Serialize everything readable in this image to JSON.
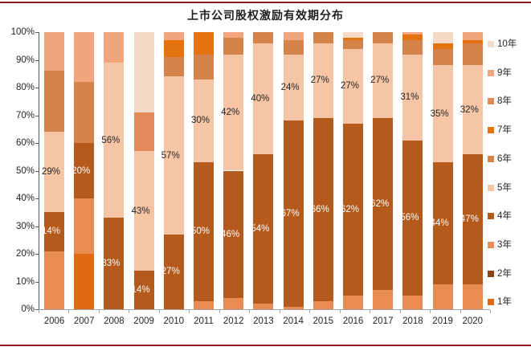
{
  "rules": {
    "color": "#8B1E1E"
  },
  "chart_data": {
    "type": "bar",
    "stacked": true,
    "orientation": "vertical",
    "title": "上市公司股权激励有效期分布",
    "categories": [
      "2006",
      "2007",
      "2008",
      "2009",
      "2010",
      "2011",
      "2012",
      "2013",
      "2014",
      "2015",
      "2016",
      "2017",
      "2018",
      "2019",
      "2020"
    ],
    "ylim": [
      0,
      100
    ],
    "yticks": [
      0,
      10,
      20,
      30,
      40,
      50,
      60,
      70,
      80,
      90,
      100
    ],
    "ytick_labels": [
      "0%",
      "10%",
      "20%",
      "30%",
      "40%",
      "50%",
      "60%",
      "70%",
      "80%",
      "90%",
      "100%"
    ],
    "grid": false,
    "legend_position": "right",
    "legend_order": "top-is-last-series",
    "labeled_series": [
      "4年",
      "5年"
    ],
    "series": [
      {
        "name": "1年",
        "color": "#E06A13",
        "label_color": "#FFFFFF",
        "values": [
          0,
          20,
          0,
          0,
          0,
          0,
          0,
          0,
          0,
          0,
          0,
          0,
          0,
          0,
          0
        ]
      },
      {
        "name": "2年",
        "color": "#8C4412",
        "label_color": "#FFFFFF",
        "values": [
          0,
          0,
          0,
          0,
          0,
          0,
          0,
          0,
          0,
          0,
          0,
          0,
          0,
          0,
          0
        ]
      },
      {
        "name": "3年",
        "color": "#E98C54",
        "label_color": "#FFFFFF",
        "values": [
          21,
          20,
          0,
          0,
          0,
          3,
          4,
          2,
          1,
          3,
          5,
          7,
          5,
          9,
          9
        ]
      },
      {
        "name": "4年",
        "color": "#B45A1D",
        "label_color": "#FFFFFF",
        "values": [
          14,
          20,
          33,
          14,
          27,
          50,
          46,
          54,
          67,
          66,
          62,
          62,
          56,
          44,
          47
        ]
      },
      {
        "name": "5年",
        "color": "#F5C5A6",
        "label_color": "#262626",
        "values": [
          29,
          0,
          56,
          43,
          57,
          30,
          42,
          40,
          24,
          27,
          27,
          27,
          31,
          35,
          32
        ]
      },
      {
        "name": "6年",
        "color": "#D6834B",
        "label_color": "#262626",
        "values": [
          22,
          22,
          0,
          0,
          7,
          9,
          6,
          4,
          5,
          4,
          3,
          4,
          5,
          6,
          8
        ]
      },
      {
        "name": "7年",
        "color": "#E4720E",
        "label_color": "#FFFFFF",
        "values": [
          0,
          0,
          0,
          0,
          6,
          8,
          0,
          0,
          0,
          0,
          1,
          0,
          2,
          2,
          1
        ]
      },
      {
        "name": "8年",
        "color": "#E18B5B",
        "label_color": "#FFFFFF",
        "values": [
          0,
          0,
          0,
          14,
          0,
          0,
          0,
          0,
          0,
          0,
          0,
          0,
          0,
          0,
          0
        ]
      },
      {
        "name": "9年",
        "color": "#F1A57F",
        "label_color": "#262626",
        "values": [
          14,
          18,
          11,
          0,
          3,
          0,
          2,
          0,
          3,
          0,
          0,
          0,
          1,
          0,
          3
        ]
      },
      {
        "name": "10年",
        "color": "#F4DAC6",
        "label_color": "#262626",
        "values": [
          0,
          0,
          0,
          29,
          0,
          0,
          0,
          0,
          0,
          0,
          2,
          0,
          0,
          4,
          0
        ]
      }
    ]
  }
}
